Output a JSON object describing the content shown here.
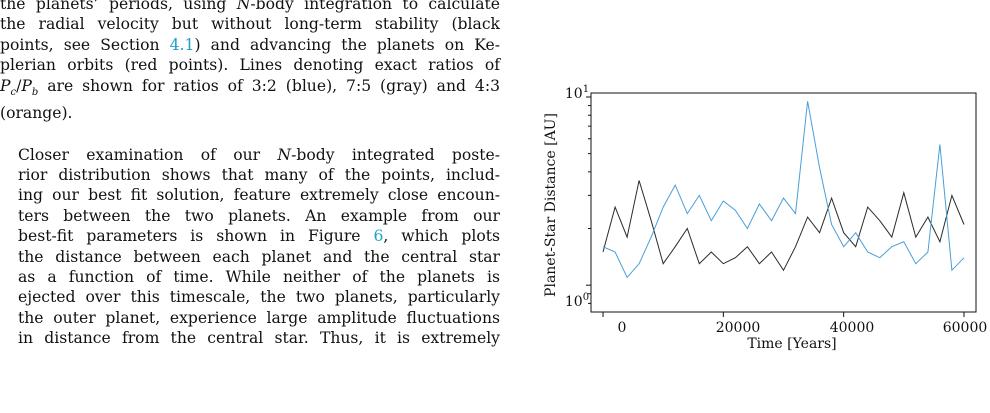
{
  "paragraph1": {
    "lines": [
      "the planets' periods, using N-body integration to calculate",
      "the radial velocity but without long-term stability (black",
      "points, see Section 4.1) and advancing the planets on Ke-",
      "plerian orbits (red points). Lines denoting exact ratios of",
      "Pc/Pb are shown for ratios of 3:2 (blue), 7:5 (gray) and 4:3",
      "(orange)."
    ],
    "section_ref": "4.1"
  },
  "paragraph2": {
    "lines": [
      "Closer examination of our N-body integrated poste-",
      "rior distribution shows that many of the points, includ-",
      "ing our best fit solution, feature extremely close encoun-",
      "ters between the two planets. An example from our",
      "best-fit parameters is shown in Figure 6, which plots",
      "the distance between each planet and the central star",
      "as a function of time. While neither of the planets is",
      "ejected over this timescale, the two planets, particularly",
      "the outer planet, experience large amplitude fluctuations",
      "in distance from the central star. Thus, it is extremely"
    ],
    "figure_ref": "6"
  },
  "chart_data": {
    "type": "line",
    "xlabel": "Time [Years]",
    "ylabel": "Planet-Star Distance [AU]",
    "xlim": [
      -2000,
      62000
    ],
    "ylim": [
      0.72,
      10.5
    ],
    "yscale": "log",
    "xticks": [
      "0",
      "20000",
      "40000",
      "60000"
    ],
    "yticks": [
      "10^0",
      "10^1"
    ],
    "grid": false,
    "colors": {
      "inner": "#2b2b2b",
      "outer": "#4a9fd8"
    },
    "series": [
      {
        "color": "#2b2b2b",
        "x": [
          0,
          2000,
          4000,
          6000,
          8000,
          10000,
          12000,
          14000,
          16000,
          18000,
          20000,
          22000,
          24000,
          26000,
          28000,
          30000,
          32000,
          34000,
          36000,
          38000,
          40000,
          42000,
          44000,
          46000,
          48000,
          50000,
          52000,
          54000,
          56000,
          58000,
          60000
        ],
        "values": [
          1.5,
          2.6,
          1.8,
          3.6,
          2.2,
          1.3,
          1.6,
          2.0,
          1.3,
          1.5,
          1.3,
          1.4,
          1.6,
          1.3,
          1.5,
          1.2,
          1.6,
          2.3,
          1.9,
          2.9,
          1.9,
          1.6,
          2.6,
          2.2,
          1.8,
          3.1,
          1.8,
          2.3,
          1.7,
          3.0,
          2.1
        ]
      },
      {
        "color": "#4a9fd8",
        "x": [
          0,
          2000,
          4000,
          6000,
          8000,
          10000,
          12000,
          14000,
          16000,
          18000,
          20000,
          22000,
          24000,
          26000,
          28000,
          30000,
          32000,
          34000,
          36000,
          38000,
          40000,
          42000,
          44000,
          46000,
          48000,
          50000,
          52000,
          54000,
          56000,
          58000,
          60000
        ],
        "values": [
          1.6,
          1.5,
          1.1,
          1.3,
          1.8,
          2.6,
          3.4,
          2.4,
          3.0,
          2.2,
          2.8,
          2.5,
          2.0,
          2.7,
          2.2,
          2.9,
          2.4,
          9.5,
          4.2,
          2.1,
          1.6,
          1.9,
          1.5,
          1.4,
          1.6,
          1.7,
          1.3,
          1.5,
          5.6,
          1.2,
          1.4
        ]
      }
    ]
  }
}
